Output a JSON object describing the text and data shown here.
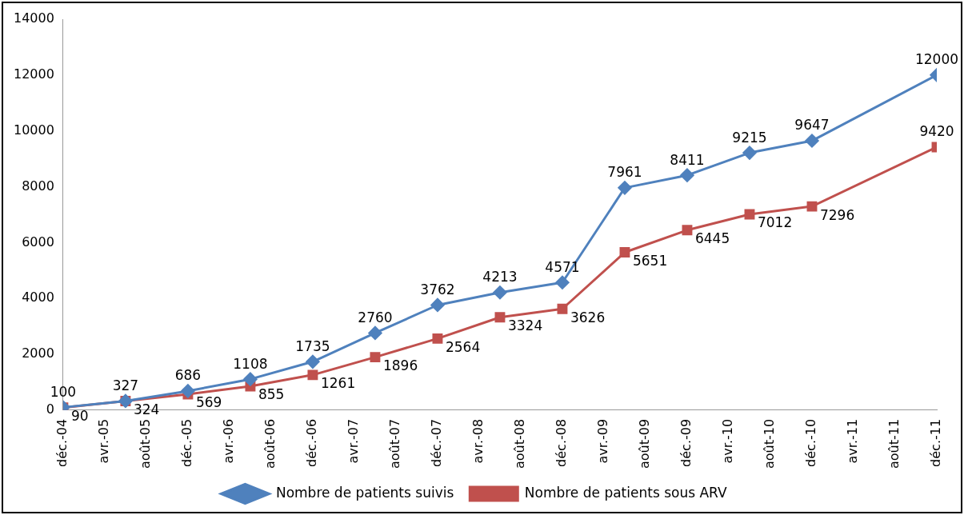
{
  "chart_data": {
    "type": "line",
    "x": [
      "2004-12",
      "2005-06",
      "2005-12",
      "2006-06",
      "2006-12",
      "2007-06",
      "2007-12",
      "2008-06",
      "2008-12",
      "2009-06",
      "2009-12",
      "2010-06",
      "2010-12",
      "2011-12"
    ],
    "series": [
      {
        "name": "Nombre de patients suivis",
        "color": "#4f81bd",
        "marker": "diamond",
        "values": [
          100,
          327,
          686,
          1108,
          1735,
          2760,
          3762,
          4213,
          4571,
          7961,
          8411,
          9215,
          9647,
          12000
        ]
      },
      {
        "name": "Nombre de patients sous ARV",
        "color": "#c0504d",
        "marker": "square",
        "values": [
          90,
          324,
          569,
          855,
          1261,
          1896,
          2564,
          3324,
          3626,
          5651,
          6445,
          7012,
          7296,
          9420
        ]
      }
    ],
    "xlim": [
      "2004-12",
      "2011-12"
    ],
    "xticks": [
      {
        "value": "2004-12",
        "label": "déc.-04"
      },
      {
        "value": "2005-04",
        "label": "avr.-05"
      },
      {
        "value": "2005-08",
        "label": "août-05"
      },
      {
        "value": "2005-12",
        "label": "déc.-05"
      },
      {
        "value": "2006-04",
        "label": "avr.-06"
      },
      {
        "value": "2006-08",
        "label": "août-06"
      },
      {
        "value": "2006-12",
        "label": "déc.-06"
      },
      {
        "value": "2007-04",
        "label": "avr.-07"
      },
      {
        "value": "2007-08",
        "label": "août-07"
      },
      {
        "value": "2007-12",
        "label": "déc.-07"
      },
      {
        "value": "2008-04",
        "label": "avr.-08"
      },
      {
        "value": "2008-08",
        "label": "août-08"
      },
      {
        "value": "2008-12",
        "label": "déc.-08"
      },
      {
        "value": "2009-04",
        "label": "avr.-09"
      },
      {
        "value": "2009-08",
        "label": "août-09"
      },
      {
        "value": "2009-12",
        "label": "déc.-09"
      },
      {
        "value": "2010-04",
        "label": "avr.-10"
      },
      {
        "value": "2010-08",
        "label": "août-10"
      },
      {
        "value": "2010-12",
        "label": "déc.-10"
      },
      {
        "value": "2011-04",
        "label": "avr.-11"
      },
      {
        "value": "2011-08",
        "label": "août-11"
      },
      {
        "value": "2011-12",
        "label": "déc.-11"
      }
    ],
    "ylim": [
      0,
      14000
    ],
    "yticks": [
      0,
      2000,
      4000,
      6000,
      8000,
      10000,
      12000,
      14000
    ],
    "data_labels": true,
    "legend": "bottom"
  }
}
